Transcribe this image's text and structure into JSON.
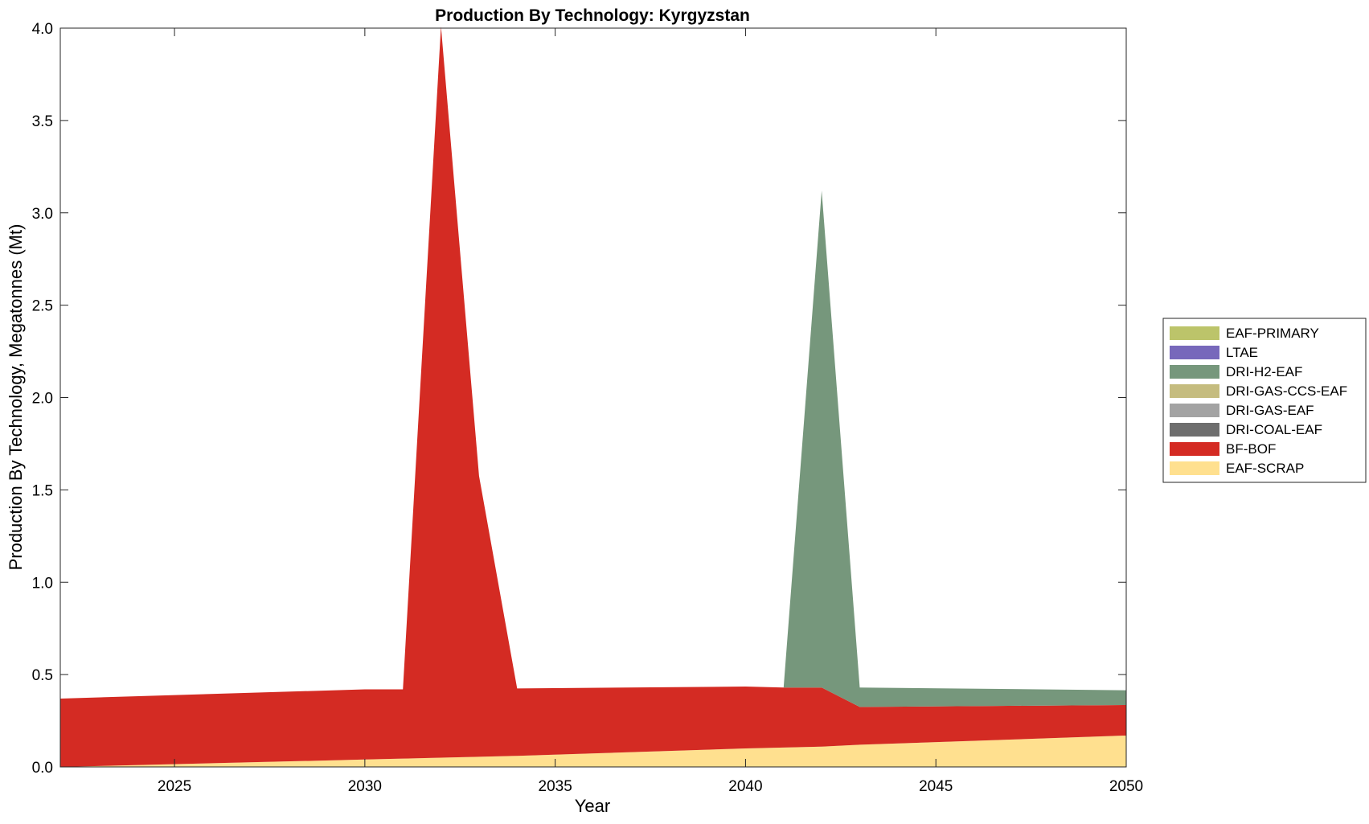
{
  "chart_data": {
    "type": "area",
    "title": "Production By Technology: Kyrgyzstan",
    "xlabel": "Year",
    "ylabel": "Production By Technology, Megatonnes (Mt)",
    "xlim": [
      2022,
      2050
    ],
    "ylim": [
      0,
      4.0
    ],
    "xticks": [
      2025,
      2030,
      2035,
      2040,
      2045,
      2050
    ],
    "xtick_labels": [
      "2025",
      "2030",
      "2035",
      "2040",
      "2045",
      "2050"
    ],
    "yticks": [
      0,
      0.5,
      1.0,
      1.5,
      2.0,
      2.5,
      3.0,
      3.5,
      4.0
    ],
    "ytick_labels": [
      "0.0",
      "0.5",
      "1.0",
      "1.5",
      "2.0",
      "2.5",
      "3.0",
      "3.5",
      "4.0"
    ],
    "grid": false,
    "legend_position": "right",
    "x": [
      2022,
      2030,
      2031,
      2032,
      2033,
      2034,
      2040,
      2041,
      2042,
      2043,
      2050
    ],
    "series": [
      {
        "name": "EAF-SCRAP",
        "color": "#FFE08F",
        "values": [
          0.0,
          0.04,
          0.045,
          0.05,
          0.055,
          0.06,
          0.1,
          0.105,
          0.11,
          0.12,
          0.17
        ]
      },
      {
        "name": "BF-BOF",
        "color": "#D42B23",
        "values": [
          0.37,
          0.38,
          0.375,
          3.96,
          1.52,
          0.365,
          0.335,
          0.325,
          0.32,
          0.205,
          0.165
        ]
      },
      {
        "name": "DRI-COAL-EAF",
        "color": "#6E6E6E",
        "values": [
          0,
          0,
          0,
          0,
          0,
          0,
          0,
          0,
          0,
          0,
          0
        ]
      },
      {
        "name": "DRI-GAS-EAF",
        "color": "#A3A3A3",
        "values": [
          0,
          0,
          0,
          0,
          0,
          0,
          0,
          0,
          0,
          0,
          0
        ]
      },
      {
        "name": "DRI-GAS-CCS-EAF",
        "color": "#C5BC7F",
        "values": [
          0,
          0,
          0,
          0,
          0,
          0,
          0,
          0,
          0,
          0,
          0
        ]
      },
      {
        "name": "DRI-H2-EAF",
        "color": "#76977C",
        "values": [
          0,
          0,
          0,
          0,
          0,
          0,
          0,
          0,
          2.69,
          0.105,
          0.08
        ]
      },
      {
        "name": "LTAE",
        "color": "#7768BB",
        "values": [
          0,
          0,
          0,
          0,
          0,
          0,
          0,
          0,
          0,
          0,
          0
        ]
      },
      {
        "name": "EAF-PRIMARY",
        "color": "#BCC46A",
        "values": [
          0,
          0,
          0,
          0,
          0,
          0,
          0,
          0,
          0,
          0,
          0
        ]
      }
    ],
    "legend_order": [
      "EAF-PRIMARY",
      "LTAE",
      "DRI-H2-EAF",
      "DRI-GAS-CCS-EAF",
      "DRI-GAS-EAF",
      "DRI-COAL-EAF",
      "BF-BOF",
      "EAF-SCRAP"
    ]
  }
}
